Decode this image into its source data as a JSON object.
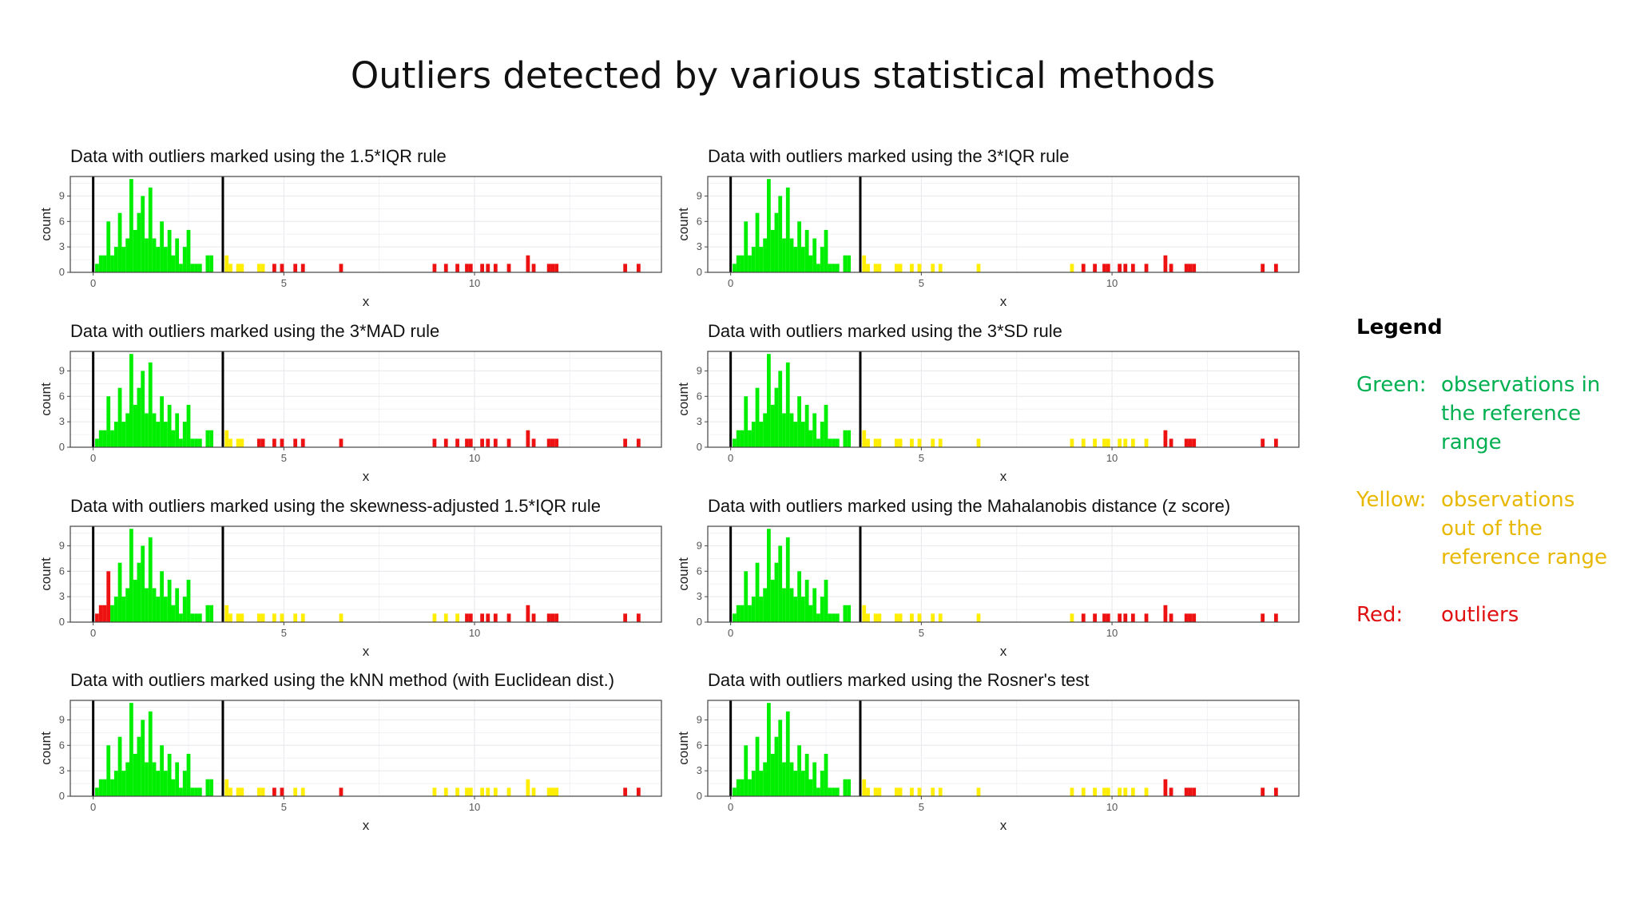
{
  "title": "Outliers detected by various statistical methods",
  "colors": {
    "green": "#00ee00",
    "yellow": "#ffee00",
    "red": "#ee1111",
    "legend_green": "#00b050",
    "legend_yellow": "#e8b800",
    "legend_red": "#e01010"
  },
  "legend": {
    "title": "Legend",
    "items": [
      {
        "key": "Green:",
        "desc": "observations in the reference range",
        "color": "legend_green"
      },
      {
        "key": "Yellow:",
        "desc": "observations out of the reference range",
        "color": "legend_yellow"
      },
      {
        "key": "Red:",
        "desc": "outliers",
        "color": "legend_red"
      }
    ]
  },
  "chart_data": [
    {
      "type": "bar",
      "title": "Data with outliers marked using the 1.5*IQR rule",
      "xlabel": "x",
      "ylabel": "count",
      "xlim": [
        -0.6,
        14.9
      ],
      "ylim": [
        0,
        11.3
      ],
      "xticks": [
        0,
        5,
        10
      ],
      "yticks": [
        0,
        3,
        6,
        9
      ],
      "reference_lines": [
        0,
        3.4
      ],
      "red_below": null,
      "yellow_up_to": 4.7
    },
    {
      "type": "bar",
      "title": "Data with outliers marked using the 3*IQR rule",
      "xlabel": "x",
      "ylabel": "count",
      "xlim": [
        -0.6,
        14.9
      ],
      "ylim": [
        0,
        11.3
      ],
      "xticks": [
        0,
        5,
        10
      ],
      "yticks": [
        0,
        3,
        6,
        9
      ],
      "reference_lines": [
        0,
        3.4
      ],
      "red_below": null,
      "yellow_up_to": 8.95
    },
    {
      "type": "bar",
      "title": "Data with outliers marked using the 3*MAD rule",
      "xlabel": "x",
      "ylabel": "count",
      "xlim": [
        -0.6,
        14.9
      ],
      "ylim": [
        0,
        11.3
      ],
      "xticks": [
        0,
        5,
        10
      ],
      "yticks": [
        0,
        3,
        6,
        9
      ],
      "reference_lines": [
        0,
        3.4
      ],
      "red_below": null,
      "yellow_up_to": 4.0
    },
    {
      "type": "bar",
      "title": "Data with outliers marked using the 3*SD rule",
      "xlabel": "x",
      "ylabel": "count",
      "xlim": [
        -0.6,
        14.9
      ],
      "ylim": [
        0,
        11.3
      ],
      "xticks": [
        0,
        5,
        10
      ],
      "yticks": [
        0,
        3,
        6,
        9
      ],
      "reference_lines": [
        0,
        3.4
      ],
      "red_below": null,
      "yellow_up_to": 11.2
    },
    {
      "type": "bar",
      "title": "Data with outliers marked using the skewness-adjusted 1.5*IQR rule",
      "xlabel": "x",
      "ylabel": "count",
      "xlim": [
        -0.6,
        14.9
      ],
      "ylim": [
        0,
        11.3
      ],
      "xticks": [
        0,
        5,
        10
      ],
      "yticks": [
        0,
        3,
        6,
        9
      ],
      "reference_lines": [
        0,
        3.4
      ],
      "red_below": 0.45,
      "yellow_up_to": 9.6
    },
    {
      "type": "bar",
      "title": "Data with outliers marked using the Mahalanobis distance (z score)",
      "xlabel": "x",
      "ylabel": "count",
      "xlim": [
        -0.6,
        14.9
      ],
      "ylim": [
        0,
        11.3
      ],
      "xticks": [
        0,
        5,
        10
      ],
      "yticks": [
        0,
        3,
        6,
        9
      ],
      "reference_lines": [
        0,
        3.4
      ],
      "red_below": null,
      "yellow_up_to": 8.95
    },
    {
      "type": "bar",
      "title": "Data with outliers marked using the kNN method (with Euclidean dist.)",
      "xlabel": "x",
      "ylabel": "count",
      "xlim": [
        -0.6,
        14.9
      ],
      "ylim": [
        0,
        11.3
      ],
      "xticks": [
        0,
        5,
        10
      ],
      "yticks": [
        0,
        3,
        6,
        9
      ],
      "reference_lines": [
        0,
        3.4
      ],
      "red_below": null,
      "yellow_up_to": 12.2,
      "red_override": [
        4.75,
        4.95,
        6.5
      ]
    },
    {
      "type": "bar",
      "title": "Data with outliers marked using the Rosner's test",
      "xlabel": "x",
      "ylabel": "count",
      "xlim": [
        -0.6,
        14.9
      ],
      "ylim": [
        0,
        11.3
      ],
      "xticks": [
        0,
        5,
        10
      ],
      "yticks": [
        0,
        3,
        6,
        9
      ],
      "reference_lines": [
        0,
        3.4
      ],
      "red_below": null,
      "yellow_up_to": 11.2
    }
  ],
  "histogram": {
    "bin_width": 0.1,
    "bins": [
      [
        0.1,
        1
      ],
      [
        0.2,
        2
      ],
      [
        0.3,
        2
      ],
      [
        0.4,
        6
      ],
      [
        0.5,
        2
      ],
      [
        0.6,
        3
      ],
      [
        0.7,
        7
      ],
      [
        0.8,
        3
      ],
      [
        0.9,
        4
      ],
      [
        1.0,
        11
      ],
      [
        1.1,
        5
      ],
      [
        1.2,
        7
      ],
      [
        1.3,
        9
      ],
      [
        1.4,
        4
      ],
      [
        1.5,
        10
      ],
      [
        1.6,
        4
      ],
      [
        1.7,
        3
      ],
      [
        1.8,
        6
      ],
      [
        1.9,
        3
      ],
      [
        2.0,
        5
      ],
      [
        2.1,
        2
      ],
      [
        2.2,
        4
      ],
      [
        2.3,
        1
      ],
      [
        2.4,
        3
      ],
      [
        2.5,
        5
      ],
      [
        2.6,
        1
      ],
      [
        2.7,
        1
      ],
      [
        2.8,
        1
      ],
      [
        3.0,
        2
      ],
      [
        3.1,
        2
      ],
      [
        3.5,
        2
      ],
      [
        3.6,
        1
      ],
      [
        3.8,
        1
      ],
      [
        3.9,
        1
      ],
      [
        4.35,
        1
      ],
      [
        4.45,
        1
      ],
      [
        4.75,
        1
      ],
      [
        4.95,
        1
      ],
      [
        5.3,
        1
      ],
      [
        5.5,
        1
      ],
      [
        6.5,
        1
      ],
      [
        8.95,
        1
      ],
      [
        9.25,
        1
      ],
      [
        9.55,
        1
      ],
      [
        9.8,
        1
      ],
      [
        9.9,
        1
      ],
      [
        10.2,
        1
      ],
      [
        10.35,
        1
      ],
      [
        10.55,
        1
      ],
      [
        10.9,
        1
      ],
      [
        11.4,
        2
      ],
      [
        11.55,
        1
      ],
      [
        11.95,
        1
      ],
      [
        12.05,
        1
      ],
      [
        12.15,
        1
      ],
      [
        13.95,
        1
      ],
      [
        14.3,
        1
      ]
    ]
  }
}
